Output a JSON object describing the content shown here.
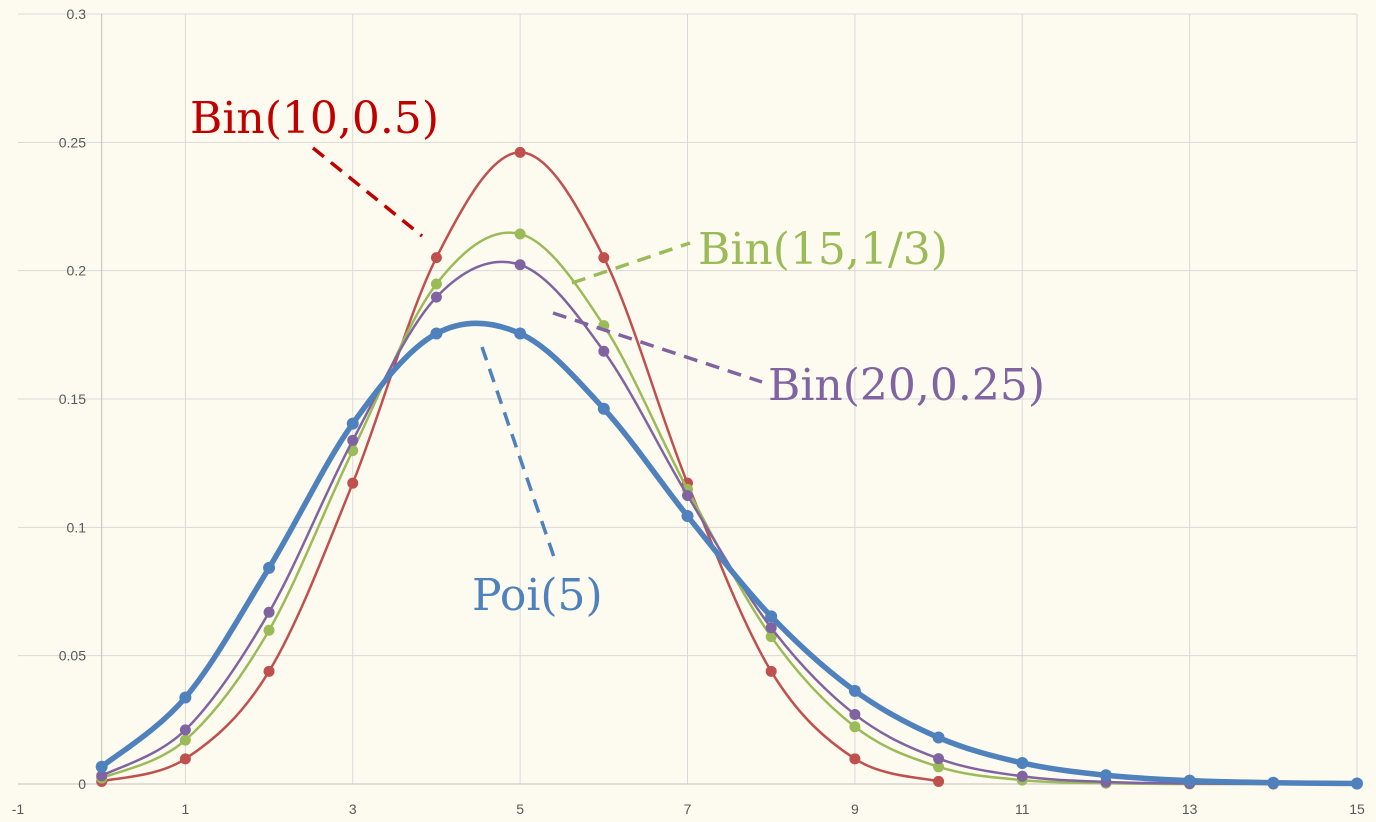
{
  "chart_data": {
    "type": "line",
    "title": "",
    "xlabel": "",
    "ylabel": "",
    "xlim": [
      -1,
      15
    ],
    "ylim": [
      0,
      0.3
    ],
    "x_ticks": [
      "-1",
      "1",
      "3",
      "5",
      "7",
      "9",
      "11",
      "13",
      "15"
    ],
    "y_ticks": [
      "0",
      "0.05",
      "0.1",
      "0.15",
      "0.2",
      "0.25",
      "0.3"
    ],
    "grid": true,
    "legend": "none",
    "series": [
      {
        "name": "Bin(10,0.5)",
        "color": "#c0504d",
        "x": [
          0,
          1,
          2,
          3,
          4,
          5,
          6,
          7,
          8,
          9,
          10
        ],
        "y": [
          0.001,
          0.0098,
          0.0439,
          0.1172,
          0.2051,
          0.2461,
          0.2051,
          0.1172,
          0.0439,
          0.0098,
          0.001
        ]
      },
      {
        "name": "Bin(15,1/3)",
        "color": "#9bbb59",
        "x": [
          0,
          1,
          2,
          3,
          4,
          5,
          6,
          7,
          8,
          9,
          10,
          11,
          12,
          13,
          14,
          15
        ],
        "y": [
          0.0023,
          0.0171,
          0.0599,
          0.1299,
          0.1948,
          0.2143,
          0.1786,
          0.1148,
          0.0574,
          0.0223,
          0.0067,
          0.0015,
          0.0003,
          0.0,
          0.0,
          0.0
        ]
      },
      {
        "name": "Bin(20,0.25)",
        "color": "#8064a2",
        "x": [
          0,
          1,
          2,
          3,
          4,
          5,
          6,
          7,
          8,
          9,
          10,
          11,
          12,
          13,
          14,
          15
        ],
        "y": [
          0.0032,
          0.0211,
          0.0669,
          0.1339,
          0.1897,
          0.2023,
          0.1686,
          0.1124,
          0.0609,
          0.0271,
          0.0099,
          0.003,
          0.0008,
          0.0002,
          0.0,
          0.0
        ]
      },
      {
        "name": "Poi(5)",
        "color": "#4f81bd",
        "x": [
          0,
          1,
          2,
          3,
          4,
          5,
          6,
          7,
          8,
          9,
          10,
          11,
          12,
          13,
          14,
          15
        ],
        "y": [
          0.0067,
          0.0337,
          0.0842,
          0.1404,
          0.1755,
          0.1755,
          0.1462,
          0.1044,
          0.0653,
          0.0363,
          0.0181,
          0.0082,
          0.0034,
          0.0013,
          0.0005,
          0.0002
        ]
      }
    ],
    "annotations": [
      {
        "text": "Bin(10,0.5)",
        "series": "Bin(10,0.5)"
      },
      {
        "text": "Bin(15,1/3)",
        "series": "Bin(15,1/3)"
      },
      {
        "text": "Bin(20,0.25)",
        "series": "Bin(20,0.25)"
      },
      {
        "text": "Poi(5)",
        "series": "Poi(5)"
      }
    ]
  }
}
